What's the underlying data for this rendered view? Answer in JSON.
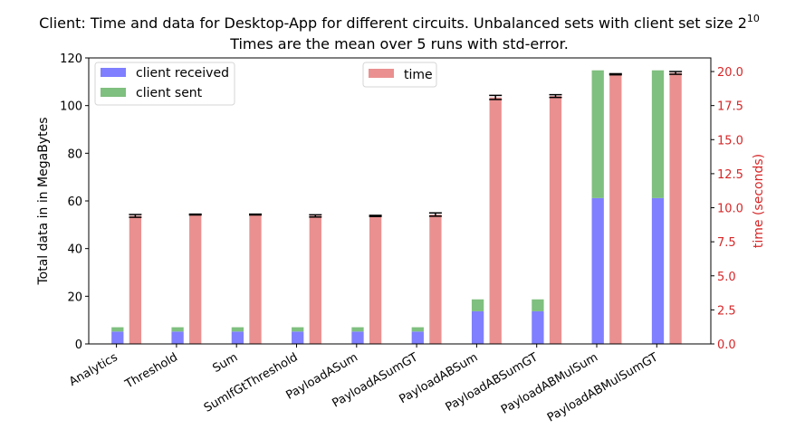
{
  "chart_data": {
    "type": "bar",
    "title_line1": "Client: Time and data for Desktop-App for different circuits. Unbalanced sets with client set size 2",
    "title_exponent": "10",
    "title_line2": "Times are the mean over 5 runs with std-error.",
    "ylabel": "Total data in in MegaBytes",
    "y2label": "time (seconds)",
    "ylim": [
      0,
      120
    ],
    "y2lim": [
      0,
      21
    ],
    "yticks": [
      "0",
      "20",
      "40",
      "60",
      "80",
      "100",
      "120"
    ],
    "y2ticks": [
      "0.0",
      "2.5",
      "5.0",
      "7.5",
      "10.0",
      "12.5",
      "15.0",
      "17.5",
      "20.0"
    ],
    "categories": [
      "Analytics",
      "Threshold",
      "Sum",
      "SumIfGtThreshold",
      "PayloadASum",
      "PayloadASumGT",
      "PayloadABSum",
      "PayloadABSumGT",
      "PayloadABMulSum",
      "PayloadABMulSumGT"
    ],
    "series": [
      {
        "name": "client received",
        "color": "#7f7fff",
        "axis": "left",
        "values": [
          5.2,
          5.2,
          5.2,
          5.2,
          5.2,
          5.2,
          13.7,
          13.7,
          61.2,
          61.2
        ]
      },
      {
        "name": "client sent",
        "color": "#7fbf7f",
        "axis": "left",
        "stacked_on": "client received",
        "values": [
          1.8,
          1.8,
          1.8,
          1.8,
          1.8,
          1.8,
          5.0,
          5.0,
          53.6,
          53.6
        ]
      },
      {
        "name": "time",
        "color": "#ea9090",
        "axis": "right",
        "values": [
          9.4,
          9.5,
          9.5,
          9.4,
          9.4,
          9.5,
          18.1,
          18.2,
          19.8,
          19.9
        ],
        "errors": [
          0.1,
          0.03,
          0.03,
          0.08,
          0.04,
          0.12,
          0.15,
          0.1,
          0.04,
          0.1
        ]
      }
    ],
    "legend_left": "upper-left",
    "legend_right": "upper-center",
    "grid": false
  }
}
